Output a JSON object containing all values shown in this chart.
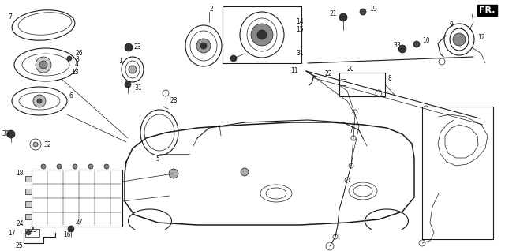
{
  "background_color": "#ffffff",
  "line_color": "#1a1a1a",
  "text_color": "#111111",
  "label_fontsize": 5.5,
  "fr_fontsize": 8,
  "fr_label": "FR.",
  "figsize": [
    6.4,
    3.18
  ],
  "dpi": 100
}
